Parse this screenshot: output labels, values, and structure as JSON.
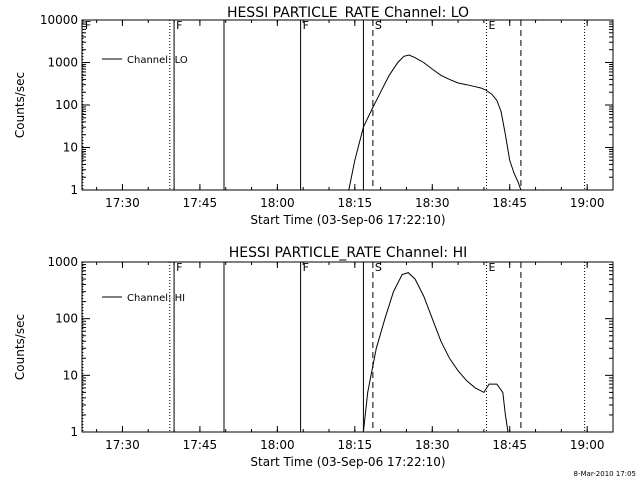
{
  "chart_data": [
    {
      "type": "line",
      "title": "HESSI PARTICLE_RATE Channel: LO",
      "xlabel": "Start Time (03-Sep-06 17:22:10)",
      "ylabel": "Counts/sec",
      "yscale": "log",
      "ylim": [
        1,
        10000
      ],
      "yticks": [
        "1",
        "10",
        "100",
        "1000",
        "10000"
      ],
      "xlim": [
        "17:22:10",
        "19:05:00"
      ],
      "xticks": [
        "17:30",
        "17:45",
        "18:00",
        "18:15",
        "18:30",
        "18:45",
        "19:00"
      ],
      "grid": false,
      "legend": {
        "label": "Channel: LO",
        "position": "top-left"
      },
      "markers": [
        {
          "time": "17:22:20",
          "style": "dotted",
          "label": "F"
        },
        {
          "time": "17:39:10",
          "style": "dotted",
          "label": ""
        },
        {
          "time": "17:40:00",
          "style": "solid",
          "label": "F"
        },
        {
          "time": "17:49:40",
          "style": "solid",
          "label": ""
        },
        {
          "time": "18:04:30",
          "style": "solid",
          "label": "F"
        },
        {
          "time": "18:16:40",
          "style": "solid",
          "label": ""
        },
        {
          "time": "18:18:30",
          "style": "dashed",
          "label": "S"
        },
        {
          "time": "18:40:30",
          "style": "dotted",
          "label": "E"
        },
        {
          "time": "18:47:10",
          "style": "dashed",
          "label": ""
        },
        {
          "time": "18:59:30",
          "style": "dotted",
          "label": ""
        }
      ],
      "series": [
        {
          "name": "Channel: LO",
          "x": [
            "18:13:50",
            "18:15:00",
            "18:16:40",
            "18:18:20",
            "18:20:00",
            "18:21:40",
            "18:23:20",
            "18:24:30",
            "18:25:30",
            "18:26:40",
            "18:28:20",
            "18:30:00",
            "18:31:40",
            "18:33:20",
            "18:35:00",
            "18:36:40",
            "18:38:20",
            "18:39:30",
            "18:40:30",
            "18:41:30",
            "18:42:30",
            "18:43:20",
            "18:44:10",
            "18:45:00",
            "18:45:50",
            "18:46:40",
            "18:47:10"
          ],
          "y": [
            1,
            5,
            30,
            80,
            200,
            500,
            1000,
            1400,
            1500,
            1300,
            1000,
            700,
            500,
            400,
            330,
            300,
            270,
            250,
            220,
            180,
            130,
            70,
            20,
            5,
            2.5,
            1.5,
            1
          ]
        }
      ]
    },
    {
      "type": "line",
      "title": "HESSI PARTICLE_RATE Channel: HI",
      "xlabel": "Start Time (03-Sep-06 17:22:10)",
      "ylabel": "Counts/sec",
      "yscale": "log",
      "ylim": [
        1,
        1000
      ],
      "yticks": [
        "1",
        "10",
        "100",
        "1000"
      ],
      "xlim": [
        "17:22:10",
        "19:05:00"
      ],
      "xticks": [
        "17:30",
        "17:45",
        "18:00",
        "18:15",
        "18:30",
        "18:45",
        "19:00"
      ],
      "grid": false,
      "legend": {
        "label": "Channel: HI",
        "position": "top-left"
      },
      "markers": [
        {
          "time": "17:22:20",
          "style": "dotted",
          "label": ""
        },
        {
          "time": "17:39:10",
          "style": "dotted",
          "label": ""
        },
        {
          "time": "17:40:00",
          "style": "solid",
          "label": "F"
        },
        {
          "time": "17:49:40",
          "style": "solid",
          "label": ""
        },
        {
          "time": "18:04:30",
          "style": "solid",
          "label": "F"
        },
        {
          "time": "18:16:40",
          "style": "solid",
          "label": ""
        },
        {
          "time": "18:18:30",
          "style": "dashed",
          "label": "S"
        },
        {
          "time": "18:40:30",
          "style": "dotted",
          "label": "E"
        },
        {
          "time": "18:47:10",
          "style": "dashed",
          "label": ""
        },
        {
          "time": "18:59:30",
          "style": "dotted",
          "label": ""
        }
      ],
      "series": [
        {
          "name": "Channel: HI",
          "x": [
            "18:16:40",
            "18:17:30",
            "18:19:10",
            "18:20:50",
            "18:22:30",
            "18:24:10",
            "18:25:20",
            "18:26:40",
            "18:28:20",
            "18:30:00",
            "18:31:40",
            "18:33:20",
            "18:35:00",
            "18:36:40",
            "18:38:20",
            "18:40:00",
            "18:41:00",
            "18:42:30",
            "18:43:40",
            "18:44:10",
            "18:44:40"
          ],
          "y": [
            1,
            5,
            30,
            100,
            300,
            600,
            650,
            500,
            250,
            100,
            40,
            20,
            12,
            8,
            6,
            5,
            7,
            7,
            5,
            2,
            1
          ]
        }
      ]
    }
  ],
  "stamp": "8-Mar-2010 17:05"
}
